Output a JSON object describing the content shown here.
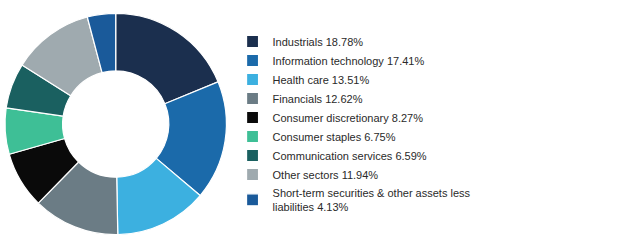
{
  "chart_data": {
    "type": "donut",
    "categories": [
      "Industrials 18.78%",
      "Information technology 17.41%",
      "Health care 13.51%",
      "Financials 12.62%",
      "Consumer discretionary 8.27%",
      "Consumer staples 6.75%",
      "Communication services 6.59%",
      "Other sectors 11.94%",
      "Short-term securities & other assets less\nliabilities 4.13%"
    ],
    "values": [
      18.78,
      17.41,
      13.51,
      12.62,
      8.27,
      6.75,
      6.59,
      11.94,
      4.13
    ],
    "colors": [
      "#1b2f4e",
      "#1b6aaa",
      "#3cb0e0",
      "#6b7c85",
      "#0a0a0a",
      "#3ebf96",
      "#1a6060",
      "#9faaaf",
      "#1a5a9a"
    ],
    "data_labels": false,
    "legend": "right"
  }
}
